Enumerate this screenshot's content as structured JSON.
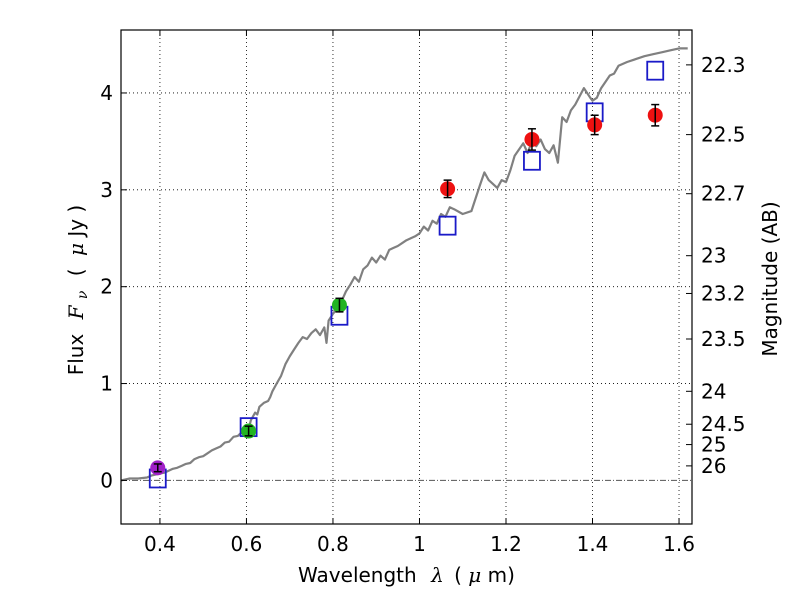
{
  "chart_data": {
    "type": "scatter",
    "xlabel_prefix": "Wavelength",
    "xlabel_symbol": "λ",
    "xlabel_unit_open": "(",
    "xlabel_unit_symbol": "μ",
    "xlabel_unit_rest": "m)",
    "ylabel_prefix": "Flux",
    "ylabel_symbol_main": "F",
    "ylabel_symbol_sub": "ν",
    "ylabel_unit_open": "(",
    "ylabel_unit_symbol": "μ",
    "ylabel_unit_rest": "Jy )",
    "right_ylabel": "Magnitude (AB)",
    "xlim": [
      0.31,
      1.63
    ],
    "ylim": [
      -0.45,
      4.65
    ],
    "xticks": [
      0.4,
      0.6,
      0.8,
      1.0,
      1.2,
      1.4,
      1.6
    ],
    "xtick_labels": [
      "0.4",
      "0.6",
      "0.8",
      "1",
      "1.2",
      "1.4",
      "1.6"
    ],
    "yticks": [
      0,
      1,
      2,
      3,
      4
    ],
    "ytick_labels": [
      "0",
      "1",
      "2",
      "3",
      "4"
    ],
    "right_ticks": [
      {
        "flux": 4.29,
        "label": "22.3"
      },
      {
        "flux": 3.57,
        "label": "22.5"
      },
      {
        "flux": 2.96,
        "label": "22.7"
      },
      {
        "flux": 2.32,
        "label": "23"
      },
      {
        "flux": 1.93,
        "label": "23.2"
      },
      {
        "flux": 1.46,
        "label": "23.5"
      },
      {
        "flux": 0.92,
        "label": "24"
      },
      {
        "flux": 0.58,
        "label": "24.5"
      },
      {
        "flux": 0.37,
        "label": "25"
      },
      {
        "flux": 0.15,
        "label": "26"
      }
    ],
    "grid": true,
    "zero_line": true,
    "series": [
      {
        "name": "model spectrum",
        "kind": "line",
        "color": "#808080",
        "x": [
          0.31,
          0.33,
          0.35,
          0.37,
          0.38,
          0.39,
          0.4,
          0.41,
          0.42,
          0.43,
          0.44,
          0.45,
          0.46,
          0.47,
          0.48,
          0.49,
          0.5,
          0.51,
          0.52,
          0.53,
          0.54,
          0.55,
          0.56,
          0.57,
          0.58,
          0.59,
          0.6,
          0.605,
          0.61,
          0.62,
          0.625,
          0.63,
          0.64,
          0.65,
          0.655,
          0.66,
          0.67,
          0.68,
          0.69,
          0.7,
          0.71,
          0.72,
          0.73,
          0.74,
          0.75,
          0.76,
          0.77,
          0.78,
          0.785,
          0.79,
          0.8,
          0.81,
          0.82,
          0.83,
          0.84,
          0.85,
          0.86,
          0.87,
          0.88,
          0.89,
          0.9,
          0.91,
          0.92,
          0.93,
          0.94,
          0.95,
          0.96,
          0.97,
          0.98,
          0.99,
          1.0,
          1.01,
          1.02,
          1.03,
          1.04,
          1.05,
          1.06,
          1.07,
          1.08,
          1.1,
          1.12,
          1.14,
          1.15,
          1.16,
          1.18,
          1.19,
          1.2,
          1.21,
          1.22,
          1.24,
          1.25,
          1.26,
          1.27,
          1.28,
          1.29,
          1.3,
          1.31,
          1.32,
          1.33,
          1.34,
          1.35,
          1.36,
          1.38,
          1.395,
          1.4,
          1.41,
          1.42,
          1.44,
          1.45,
          1.46,
          1.48,
          1.5,
          1.52,
          1.54,
          1.56,
          1.58,
          1.6,
          1.62
        ],
        "y": [
          0.0,
          0.02,
          0.02,
          0.03,
          0.05,
          0.06,
          0.07,
          0.08,
          0.1,
          0.12,
          0.13,
          0.15,
          0.17,
          0.18,
          0.22,
          0.24,
          0.25,
          0.28,
          0.31,
          0.33,
          0.35,
          0.39,
          0.4,
          0.45,
          0.46,
          0.5,
          0.55,
          0.52,
          0.62,
          0.7,
          0.68,
          0.76,
          0.8,
          0.82,
          0.86,
          0.92,
          1.0,
          1.08,
          1.2,
          1.28,
          1.35,
          1.42,
          1.48,
          1.46,
          1.52,
          1.56,
          1.5,
          1.58,
          1.42,
          1.65,
          1.72,
          1.78,
          1.85,
          1.95,
          2.02,
          2.1,
          2.05,
          2.18,
          2.22,
          2.3,
          2.25,
          2.32,
          2.28,
          2.38,
          2.4,
          2.42,
          2.45,
          2.48,
          2.5,
          2.52,
          2.55,
          2.62,
          2.58,
          2.68,
          2.65,
          2.75,
          2.72,
          2.82,
          2.8,
          2.75,
          2.78,
          3.05,
          3.18,
          3.1,
          3.02,
          3.1,
          3.08,
          3.2,
          3.35,
          3.48,
          3.38,
          3.5,
          3.45,
          3.52,
          3.42,
          3.38,
          3.46,
          3.28,
          3.75,
          3.7,
          3.82,
          3.88,
          4.05,
          3.95,
          3.92,
          3.95,
          4.05,
          4.18,
          4.2,
          4.28,
          4.32,
          4.35,
          4.38,
          4.4,
          4.42,
          4.44,
          4.46,
          4.46
        ]
      },
      {
        "name": "model photometry",
        "kind": "open-square",
        "color": "#1a1ac8",
        "x": [
          0.395,
          0.605,
          0.815,
          1.065,
          1.26,
          1.405,
          1.545
        ],
        "y": [
          0.02,
          0.55,
          1.7,
          2.63,
          3.3,
          3.8,
          4.23
        ]
      },
      {
        "name": "observed (violet)",
        "kind": "filled-circle",
        "color": "#a020c8",
        "x": [
          0.395
        ],
        "y": [
          0.13
        ],
        "yerr": [
          0.04
        ]
      },
      {
        "name": "observed (green)",
        "kind": "filled-circle",
        "color": "#22b422",
        "x": [
          0.605,
          0.815
        ],
        "y": [
          0.51,
          1.81
        ],
        "yerr": [
          0.05,
          0.07
        ]
      },
      {
        "name": "observed (red)",
        "kind": "filled-circle",
        "color": "#ee1111",
        "x": [
          1.065,
          1.26,
          1.405,
          1.545
        ],
        "y": [
          3.01,
          3.52,
          3.67,
          3.77
        ],
        "yerr": [
          0.09,
          0.11,
          0.1,
          0.11
        ]
      }
    ]
  }
}
